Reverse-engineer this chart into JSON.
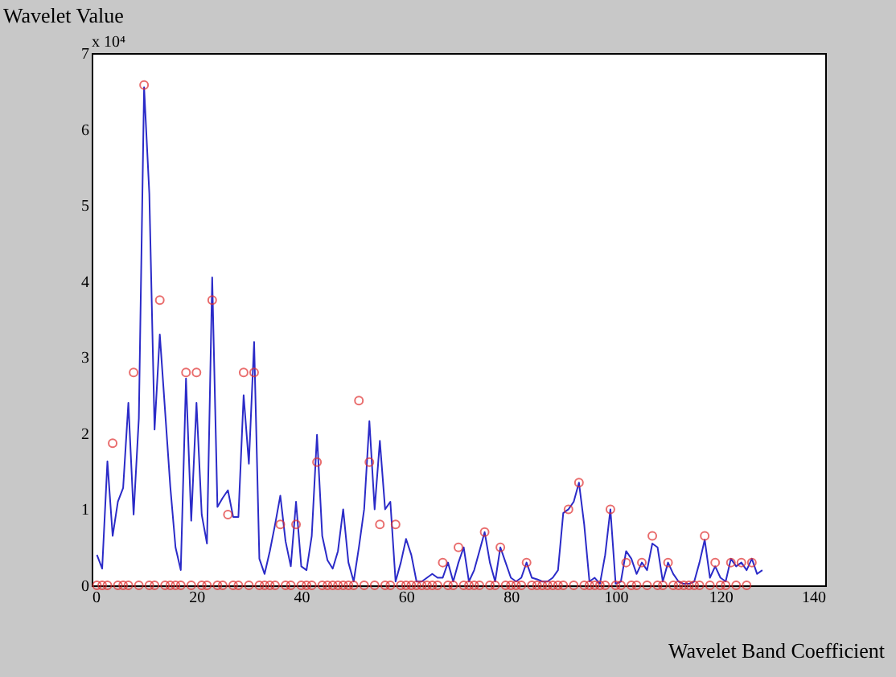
{
  "chart_data": {
    "type": "line",
    "xlabel": "Wavelet Band Coefficient",
    "ylabel": "Wavelet Value",
    "annotations": [
      "x 10⁴"
    ],
    "xlim": [
      0,
      140
    ],
    "xticks": [
      0,
      20,
      40,
      60,
      80,
      100,
      120,
      140
    ],
    "ylim": [
      0,
      7
    ],
    "yticks": [
      0,
      1,
      2,
      3,
      4,
      5,
      6,
      7
    ],
    "grid": false,
    "series": [
      {
        "color": "#2b2bc8",
        "marker": "none",
        "x": [
          1,
          2,
          3,
          4,
          5,
          6,
          7,
          8,
          9,
          10,
          11,
          12,
          13,
          14,
          15,
          16,
          17,
          18,
          19,
          20,
          21,
          22,
          23,
          24,
          25,
          26,
          27,
          28,
          29,
          30,
          31,
          32,
          33,
          34,
          35,
          36,
          37,
          38,
          39,
          40,
          41,
          42,
          43,
          44,
          45,
          46,
          47,
          48,
          49,
          50,
          51,
          52,
          53,
          54,
          55,
          56,
          57,
          58,
          59,
          60,
          61,
          62,
          63,
          64,
          65,
          66,
          67,
          68,
          69,
          70,
          71,
          72,
          73,
          74,
          75,
          76,
          77,
          78,
          79,
          80,
          81,
          82,
          83,
          84,
          85,
          86,
          87,
          88,
          89,
          90,
          91,
          92,
          93,
          94,
          95,
          96,
          97,
          98,
          99,
          100,
          101,
          102,
          103,
          104,
          105,
          106,
          107,
          108,
          109,
          110,
          111,
          112,
          113,
          114,
          115,
          116,
          117,
          118,
          119,
          120,
          121,
          122,
          123,
          124,
          125,
          126,
          127,
          128
        ],
        "values": [
          0.4,
          0.22,
          1.63,
          0.65,
          1.1,
          1.28,
          2.4,
          0.93,
          2.2,
          6.55,
          5.15,
          2.05,
          3.3,
          2.3,
          1.3,
          0.5,
          0.2,
          2.72,
          0.85,
          2.4,
          0.93,
          0.55,
          4.05,
          1.03,
          1.15,
          1.25,
          0.9,
          0.9,
          2.5,
          1.6,
          3.2,
          0.35,
          0.15,
          0.45,
          0.8,
          1.18,
          0.58,
          0.25,
          1.1,
          0.25,
          0.2,
          0.65,
          1.98,
          0.65,
          0.33,
          0.22,
          0.45,
          1.0,
          0.3,
          0.05,
          0.5,
          1.0,
          2.16,
          1.0,
          1.9,
          1.0,
          1.1,
          0.05,
          0.3,
          0.61,
          0.4,
          0.05,
          0.05,
          0.1,
          0.15,
          0.1,
          0.1,
          0.3,
          0.05,
          0.3,
          0.5,
          0.05,
          0.2,
          0.45,
          0.7,
          0.3,
          0.05,
          0.5,
          0.3,
          0.1,
          0.05,
          0.1,
          0.3,
          0.1,
          0.08,
          0.05,
          0.05,
          0.1,
          0.2,
          0.95,
          1.0,
          1.1,
          1.35,
          0.8,
          0.05,
          0.1,
          0.02,
          0.4,
          1.0,
          0.02,
          0.05,
          0.45,
          0.35,
          0.15,
          0.3,
          0.2,
          0.55,
          0.5,
          0.05,
          0.3,
          0.15,
          0.05,
          0.02,
          0.02,
          0.05,
          0.3,
          0.6,
          0.1,
          0.25,
          0.1,
          0.05,
          0.35,
          0.25,
          0.3,
          0.2,
          0.35,
          0.15,
          0.2
        ]
      },
      {
        "type": "scatter",
        "color": "#e03030",
        "marker": "circle",
        "x": [
          1,
          2,
          3,
          4,
          5,
          6,
          7,
          8,
          9,
          10,
          11,
          12,
          13,
          14,
          15,
          16,
          17,
          18,
          19,
          20,
          21,
          22,
          23,
          24,
          25,
          26,
          27,
          28,
          29,
          30,
          31,
          32,
          33,
          34,
          35,
          36,
          37,
          38,
          39,
          40,
          41,
          42,
          43,
          44,
          45,
          46,
          47,
          48,
          49,
          50,
          51,
          52,
          53,
          54,
          55,
          56,
          57,
          58,
          59,
          60,
          61,
          62,
          63,
          64,
          65,
          66,
          67,
          68,
          69,
          70,
          71,
          72,
          73,
          74,
          75,
          76,
          77,
          78,
          79,
          80,
          81,
          82,
          83,
          84,
          85,
          86,
          87,
          88,
          89,
          90,
          91,
          92,
          93,
          94,
          95,
          96,
          97,
          98,
          99,
          100,
          101,
          102,
          103,
          104,
          105,
          106,
          107,
          108,
          109,
          110,
          111,
          112,
          113,
          114,
          115,
          116,
          117,
          118,
          119,
          120,
          121,
          122,
          123,
          124,
          125,
          126
        ],
        "values": [
          0,
          0,
          0,
          1.87,
          0,
          0,
          0,
          2.8,
          0,
          6.58,
          0,
          0,
          3.75,
          0,
          0,
          0,
          0,
          2.8,
          0,
          2.8,
          0,
          0,
          3.75,
          0,
          0,
          0.93,
          0,
          0,
          2.8,
          0,
          2.8,
          0,
          0,
          0,
          0,
          0.8,
          0,
          0,
          0.8,
          0,
          0,
          0,
          1.62,
          0,
          0,
          0,
          0,
          0,
          0,
          0,
          2.43,
          0,
          1.62,
          0,
          0.8,
          0,
          0,
          0.8,
          0,
          0,
          0,
          0,
          0,
          0,
          0,
          0,
          0.3,
          0,
          0,
          0.5,
          0,
          0,
          0,
          0,
          0.7,
          0,
          0,
          0.5,
          0,
          0,
          0,
          0,
          0.3,
          0,
          0,
          0,
          0,
          0,
          0,
          0,
          1.0,
          0,
          1.35,
          0,
          0,
          0,
          0,
          0,
          1.0,
          0,
          0,
          0.3,
          0,
          0,
          0.3,
          0,
          0.65,
          0,
          0,
          0.3,
          0,
          0,
          0,
          0,
          0,
          0,
          0.65,
          0,
          0.3,
          0,
          0,
          0.3,
          0,
          0.3,
          0,
          0.3
        ]
      }
    ]
  }
}
